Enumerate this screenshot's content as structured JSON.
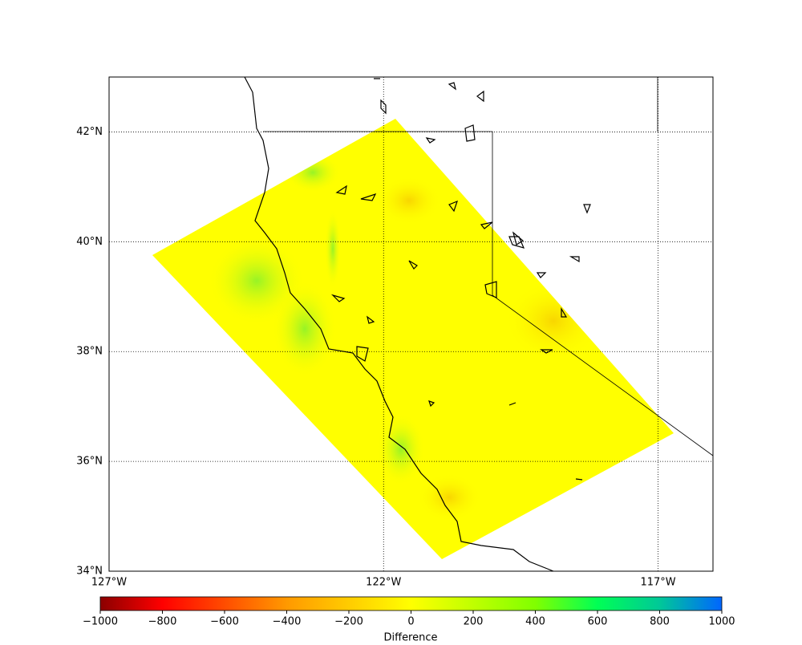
{
  "map": {
    "lon_lim": [
      -127,
      -116
    ],
    "lat_lim": [
      34,
      43
    ],
    "lon_ticks": [
      {
        "value": -127,
        "label": "127°W"
      },
      {
        "value": -122,
        "label": "122°W"
      },
      {
        "value": -117,
        "label": "117°W"
      }
    ],
    "lat_ticks": [
      {
        "value": 34,
        "label": "34°N"
      },
      {
        "value": 36,
        "label": "36°N"
      },
      {
        "value": 38,
        "label": "38°N"
      },
      {
        "value": 40,
        "label": "40°N"
      },
      {
        "value": 42,
        "label": "42°N"
      }
    ]
  },
  "colorbar": {
    "label": "Difference",
    "lim": [
      -1000,
      1000
    ],
    "ticks": [
      {
        "value": -1000,
        "label": "−1000"
      },
      {
        "value": -800,
        "label": "−800"
      },
      {
        "value": -600,
        "label": "−600"
      },
      {
        "value": -400,
        "label": "−400"
      },
      {
        "value": -200,
        "label": "−200"
      },
      0,
      200,
      400,
      600,
      800,
      1000
    ]
  }
}
